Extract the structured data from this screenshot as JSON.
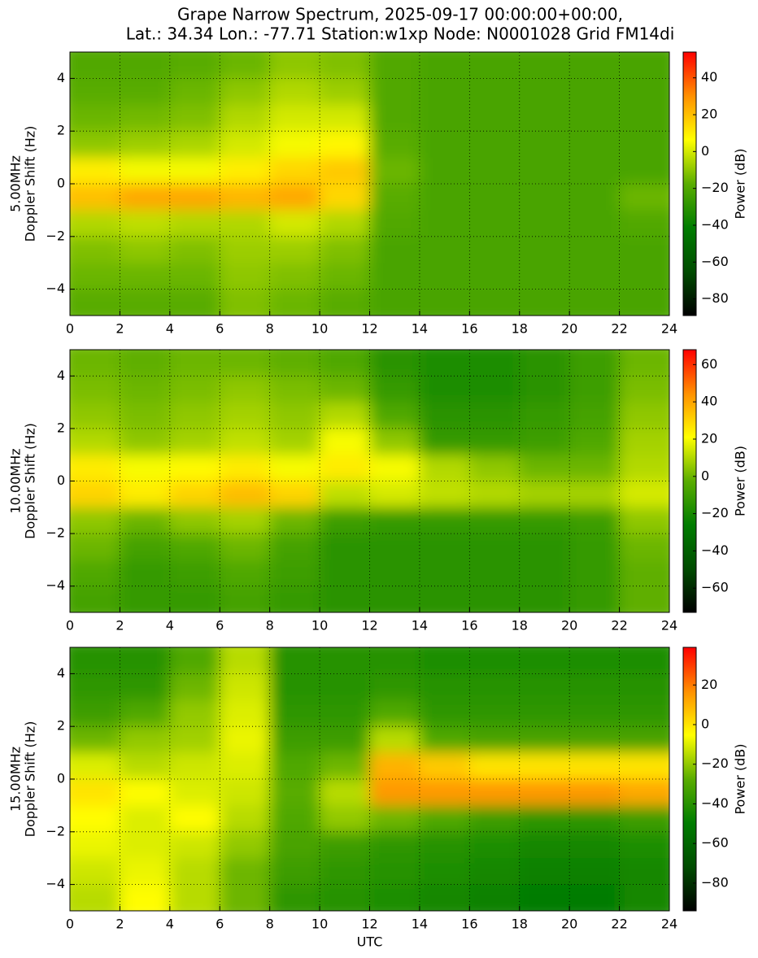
{
  "title_lines": [
    "Grape Narrow Spectrum, 2025-09-17 00:00:00+00:00,",
    "Lat.: 34.34 Lon.: -77.71 Station:w1xp Node: N0001028 Grid FM14di"
  ],
  "chart_data": [
    {
      "type": "heatmap",
      "ylabel": [
        "5.00MHz",
        "Doppler Shift (Hz)"
      ],
      "clabel": "Power (dB)",
      "colormap": [
        "#000000",
        "#004c00",
        "#007d00",
        "#5aad00",
        "#ffff00",
        "#ff9000",
        "#ff0000"
      ],
      "grid": true,
      "xlim": [
        0,
        24
      ],
      "ylim": [
        -5,
        5
      ],
      "xticks": [
        0,
        2,
        4,
        6,
        8,
        10,
        12,
        14,
        16,
        18,
        20,
        22,
        24
      ],
      "yticks": [
        {
          "value": -4,
          "label": "−4"
        },
        {
          "value": -2,
          "label": "−2"
        },
        0,
        2,
        4
      ],
      "clim": [
        -89,
        54
      ],
      "cticks": [
        {
          "value": -80,
          "label": "−80"
        },
        {
          "value": -60,
          "label": "−60"
        },
        {
          "value": -40,
          "label": "−40"
        },
        {
          "value": -20,
          "label": "−20"
        },
        0,
        20,
        40
      ],
      "xbins": [
        0,
        2,
        4,
        6,
        8,
        10,
        12,
        14,
        16,
        18,
        20,
        22,
        24
      ],
      "ybins": [
        5,
        4,
        3,
        2,
        1,
        0,
        -1,
        -2,
        -3,
        -4,
        -5
      ],
      "z": [
        [
          -20,
          -20,
          -18,
          -15,
          -10,
          -12,
          -20,
          -22,
          -22,
          -22,
          -22,
          -22
        ],
        [
          -18,
          -18,
          -15,
          -10,
          -5,
          -8,
          -20,
          -22,
          -22,
          -22,
          -22,
          -22
        ],
        [
          -15,
          -14,
          -12,
          -5,
          0,
          0,
          -20,
          -22,
          -22,
          -22,
          -22,
          -22
        ],
        [
          -10,
          -8,
          -6,
          0,
          5,
          8,
          -18,
          -22,
          -22,
          -22,
          -22,
          -22
        ],
        [
          10,
          5,
          5,
          10,
          15,
          18,
          -15,
          -22,
          -22,
          -22,
          -22,
          -22
        ],
        [
          20,
          25,
          25,
          22,
          25,
          15,
          -18,
          -22,
          -22,
          -22,
          -22,
          -15
        ],
        [
          -5,
          -3,
          -5,
          -5,
          0,
          -5,
          -20,
          -22,
          -22,
          -22,
          -22,
          -20
        ],
        [
          -12,
          -10,
          -12,
          -8,
          -8,
          -12,
          -22,
          -22,
          -22,
          -22,
          -22,
          -22
        ],
        [
          -15,
          -15,
          -15,
          -10,
          -12,
          -15,
          -22,
          -22,
          -22,
          -22,
          -22,
          -22
        ],
        [
          -18,
          -18,
          -18,
          -12,
          -15,
          -18,
          -22,
          -22,
          -22,
          -22,
          -22,
          -22
        ]
      ]
    },
    {
      "type": "heatmap",
      "ylabel": [
        "10.00MHz",
        "Doppler Shift (Hz)"
      ],
      "clabel": "Power (dB)",
      "colormap": [
        "#000000",
        "#004c00",
        "#007d00",
        "#5aad00",
        "#ffff00",
        "#ff9000",
        "#ff0000"
      ],
      "grid": true,
      "xlim": [
        0,
        24
      ],
      "ylim": [
        -5,
        5
      ],
      "xticks": [
        0,
        2,
        4,
        6,
        8,
        10,
        12,
        14,
        16,
        18,
        20,
        22,
        24
      ],
      "yticks": [
        {
          "value": -4,
          "label": "−4"
        },
        {
          "value": -2,
          "label": "−2"
        },
        0,
        2,
        4
      ],
      "clim": [
        -73,
        68
      ],
      "cticks": [
        {
          "value": -60,
          "label": "−60"
        },
        {
          "value": -40,
          "label": "−40"
        },
        {
          "value": -20,
          "label": "−20"
        },
        0,
        20,
        40,
        60
      ],
      "xbins": [
        0,
        2,
        4,
        6,
        8,
        10,
        12,
        14,
        16,
        18,
        20,
        22,
        24
      ],
      "ybins": [
        5,
        4,
        3,
        2,
        1,
        0,
        -1,
        -2,
        -3,
        -4,
        -5
      ],
      "z": [
        [
          0,
          -2,
          0,
          0,
          -2,
          -5,
          -15,
          -18,
          -18,
          -15,
          -10,
          0
        ],
        [
          2,
          0,
          2,
          5,
          2,
          0,
          -12,
          -18,
          -18,
          -15,
          -10,
          2
        ],
        [
          5,
          2,
          5,
          8,
          5,
          10,
          -5,
          -15,
          -15,
          -12,
          -8,
          5
        ],
        [
          10,
          5,
          8,
          12,
          8,
          20,
          5,
          -12,
          -12,
          -10,
          -5,
          8
        ],
        [
          25,
          20,
          22,
          25,
          20,
          25,
          20,
          10,
          5,
          0,
          0,
          10
        ],
        [
          30,
          25,
          30,
          35,
          30,
          12,
          15,
          12,
          10,
          8,
          8,
          15
        ],
        [
          5,
          0,
          5,
          8,
          0,
          -10,
          -12,
          -12,
          -12,
          -12,
          -10,
          5
        ],
        [
          0,
          -8,
          -5,
          0,
          -8,
          -15,
          -15,
          -15,
          -15,
          -15,
          -12,
          0
        ],
        [
          -5,
          -12,
          -10,
          -5,
          -10,
          -15,
          -15,
          -15,
          -15,
          -15,
          -12,
          -2
        ],
        [
          -8,
          -12,
          -12,
          -8,
          -12,
          -15,
          -15,
          -15,
          -15,
          -15,
          -12,
          -2
        ]
      ]
    },
    {
      "type": "heatmap",
      "ylabel": [
        "15.00MHz",
        "Doppler Shift (Hz)"
      ],
      "xlabel": "UTC",
      "clabel": "Power (dB)",
      "colormap": [
        "#000000",
        "#004c00",
        "#007d00",
        "#5aad00",
        "#ffff00",
        "#ff9000",
        "#ff0000"
      ],
      "grid": true,
      "xlim": [
        0,
        24
      ],
      "ylim": [
        -5,
        5
      ],
      "xticks": [
        0,
        2,
        4,
        6,
        8,
        10,
        12,
        14,
        16,
        18,
        20,
        22,
        24
      ],
      "yticks": [
        {
          "value": -4,
          "label": "−4"
        },
        {
          "value": -2,
          "label": "−2"
        },
        0,
        2,
        4
      ],
      "clim": [
        -94,
        39
      ],
      "cticks": [
        {
          "value": -80,
          "label": "−80"
        },
        {
          "value": -60,
          "label": "−60"
        },
        {
          "value": -40,
          "label": "−40"
        },
        {
          "value": -20,
          "label": "−20"
        },
        0,
        20
      ],
      "xbins": [
        0,
        2,
        4,
        6,
        8,
        10,
        12,
        14,
        16,
        18,
        20,
        22,
        24
      ],
      "ybins": [
        5,
        4,
        3,
        2,
        1,
        0,
        -1,
        -2,
        -3,
        -4,
        -5
      ],
      "z": [
        [
          -40,
          -40,
          -30,
          -15,
          -40,
          -40,
          -40,
          -42,
          -42,
          -42,
          -42,
          -42
        ],
        [
          -38,
          -38,
          -25,
          -12,
          -40,
          -40,
          -38,
          -40,
          -40,
          -40,
          -40,
          -40
        ],
        [
          -35,
          -30,
          -20,
          -10,
          -38,
          -38,
          -30,
          -38,
          -38,
          -38,
          -38,
          -38
        ],
        [
          -25,
          -20,
          -18,
          -8,
          -35,
          -35,
          -15,
          -30,
          -32,
          -32,
          -32,
          -32
        ],
        [
          -10,
          -15,
          -12,
          -10,
          -30,
          -25,
          10,
          5,
          0,
          0,
          0,
          0
        ],
        [
          0,
          -5,
          -10,
          -12,
          -28,
          -15,
          15,
          15,
          15,
          15,
          15,
          12
        ],
        [
          -5,
          -10,
          -5,
          -15,
          -30,
          -20,
          -25,
          -30,
          -35,
          -38,
          -38,
          -35
        ],
        [
          -8,
          -10,
          -12,
          -20,
          -32,
          -35,
          -38,
          -40,
          -42,
          -45,
          -45,
          -42
        ],
        [
          -12,
          -8,
          -15,
          -25,
          -35,
          -38,
          -40,
          -42,
          -45,
          -48,
          -48,
          -45
        ],
        [
          -15,
          -5,
          -15,
          -25,
          -38,
          -40,
          -42,
          -45,
          -48,
          -50,
          -50,
          -45
        ]
      ]
    }
  ]
}
